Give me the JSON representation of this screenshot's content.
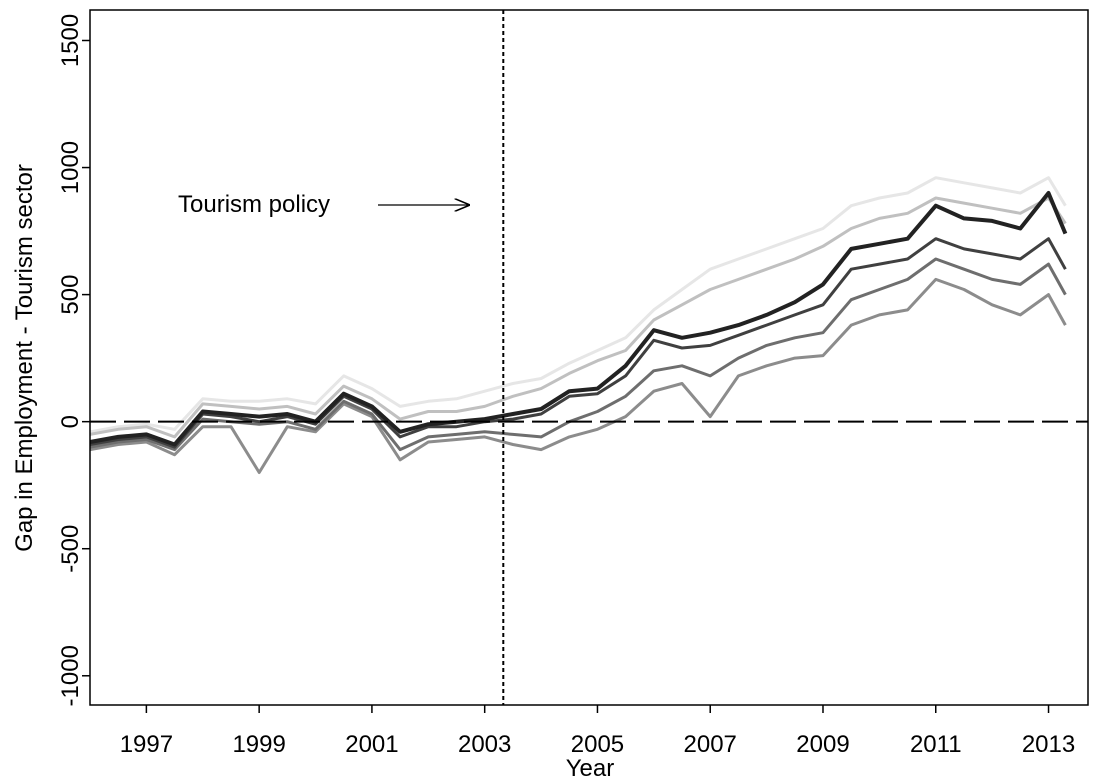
{
  "chart_data": {
    "type": "line",
    "x_label": "Year",
    "y_label": "Gap in Employment - Tourism sector",
    "annotation": "Tourism policy",
    "reference_x": 2003.33,
    "reference_y": 0,
    "x": [
      1996,
      1996.5,
      1997,
      1997.5,
      1998,
      1998.5,
      1999,
      1999.5,
      2000,
      2000.5,
      2001,
      2001.5,
      2002,
      2002.5,
      2003,
      2003.5,
      2004,
      2004.5,
      2005,
      2005.5,
      2006,
      2006.5,
      2007,
      2007.5,
      2008,
      2008.5,
      2009,
      2009.5,
      2010,
      2010.5,
      2011,
      2011.5,
      2012,
      2012.5,
      2013,
      2013.3
    ],
    "series": [
      {
        "color": "#e6e6e6",
        "values": [
          -40,
          -20,
          -10,
          -30,
          90,
          80,
          80,
          90,
          70,
          180,
          130,
          60,
          80,
          90,
          120,
          150,
          170,
          230,
          280,
          330,
          440,
          520,
          600,
          640,
          680,
          720,
          760,
          850,
          880,
          900,
          960,
          940,
          920,
          900,
          960,
          850
        ]
      },
      {
        "color": "#c0c0c0",
        "values": [
          -50,
          -30,
          -20,
          -60,
          70,
          60,
          50,
          60,
          30,
          140,
          90,
          10,
          40,
          40,
          60,
          100,
          130,
          190,
          240,
          280,
          400,
          460,
          520,
          560,
          600,
          640,
          690,
          760,
          800,
          820,
          880,
          860,
          840,
          820,
          880,
          780
        ]
      },
      {
        "color": "#8c8c8c",
        "values": [
          -110,
          -90,
          -80,
          -130,
          -20,
          -20,
          -200,
          -20,
          -40,
          70,
          20,
          -150,
          -80,
          -70,
          -60,
          -90,
          -110,
          -60,
          -30,
          20,
          120,
          150,
          20,
          180,
          220,
          250,
          260,
          380,
          420,
          440,
          560,
          520,
          460,
          420,
          500,
          380
        ]
      },
      {
        "color": "#6e6e6e",
        "values": [
          -100,
          -80,
          -70,
          -110,
          10,
          0,
          -10,
          0,
          -30,
          80,
          30,
          -110,
          -60,
          -50,
          -40,
          -50,
          -60,
          0,
          40,
          100,
          200,
          220,
          180,
          250,
          300,
          330,
          350,
          480,
          520,
          560,
          640,
          600,
          560,
          540,
          620,
          500
        ]
      },
      {
        "color": "#404040",
        "values": [
          -90,
          -70,
          -60,
          -100,
          30,
          20,
          0,
          20,
          -10,
          100,
          50,
          -60,
          -20,
          -20,
          0,
          10,
          30,
          100,
          110,
          180,
          320,
          290,
          300,
          340,
          380,
          420,
          460,
          600,
          620,
          640,
          720,
          680,
          660,
          640,
          720,
          600
        ]
      },
      {
        "color": "#222222",
        "values": [
          -80,
          -60,
          -50,
          -90,
          40,
          30,
          20,
          30,
          0,
          110,
          60,
          -40,
          -10,
          0,
          10,
          30,
          50,
          120,
          130,
          220,
          360,
          330,
          350,
          380,
          420,
          470,
          540,
          680,
          700,
          720,
          850,
          800,
          790,
          760,
          900,
          740
        ]
      }
    ],
    "xlim": [
      1996,
      2013.7
    ],
    "ylim": [
      -1115,
      1620
    ],
    "xticks": [
      1997,
      1999,
      2001,
      2003,
      2005,
      2007,
      2009,
      2011,
      2013
    ],
    "yticks": [
      -1000,
      -500,
      0,
      500,
      1000,
      1500
    ]
  }
}
